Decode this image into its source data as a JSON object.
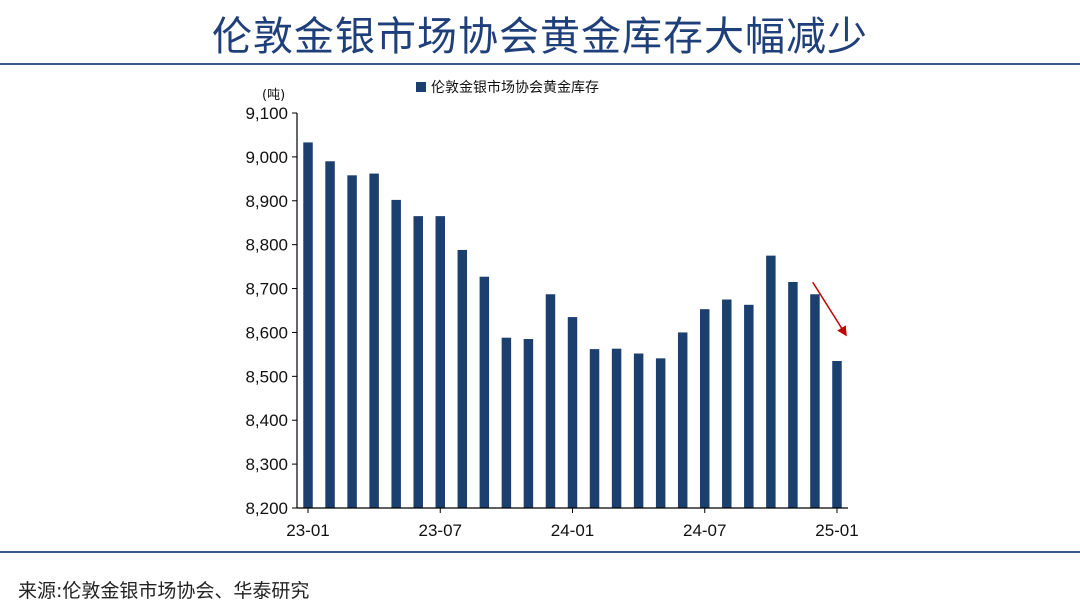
{
  "page": {
    "title": "伦敦金银市场协会黄金库存大幅减少",
    "source": "来源:伦敦金银市场协会、华泰研究"
  },
  "chart_data": {
    "type": "bar",
    "unit": "(吨)",
    "legend": "伦敦金银市场协会黄金库存",
    "ylim": [
      8200,
      9100
    ],
    "ytick_step": 100,
    "yticks": [
      "8,200",
      "8,300",
      "8,400",
      "8,500",
      "8,600",
      "8,700",
      "8,800",
      "8,900",
      "9,000",
      "9,100"
    ],
    "x_tick_labels": [
      "23-01",
      "23-07",
      "24-01",
      "24-07",
      "25-01"
    ],
    "x_tick_positions": [
      0,
      6,
      12,
      18,
      24
    ],
    "categories": [
      "23-01",
      "23-02",
      "23-03",
      "23-04",
      "23-05",
      "23-06",
      "23-07",
      "23-08",
      "23-09",
      "23-10",
      "23-11",
      "23-12",
      "24-01",
      "24-02",
      "24-03",
      "24-04",
      "24-05",
      "24-06",
      "24-07",
      "24-08",
      "24-09",
      "24-10",
      "24-11",
      "24-12",
      "25-01"
    ],
    "series": [
      {
        "name": "伦敦金银市场协会黄金库存",
        "values": [
          9033,
          8990,
          8958,
          8962,
          8902,
          8865,
          8865,
          8788,
          8727,
          8588,
          8585,
          8687,
          8635,
          8562,
          8563,
          8552,
          8541,
          8600,
          8653,
          8675,
          8663,
          8775,
          8715,
          8687,
          8535
        ]
      }
    ],
    "colors": {
      "bar": "#1b3f6e",
      "arrow": "#c00000",
      "axis": "#000000"
    },
    "annotation": "red-arrow-down"
  }
}
